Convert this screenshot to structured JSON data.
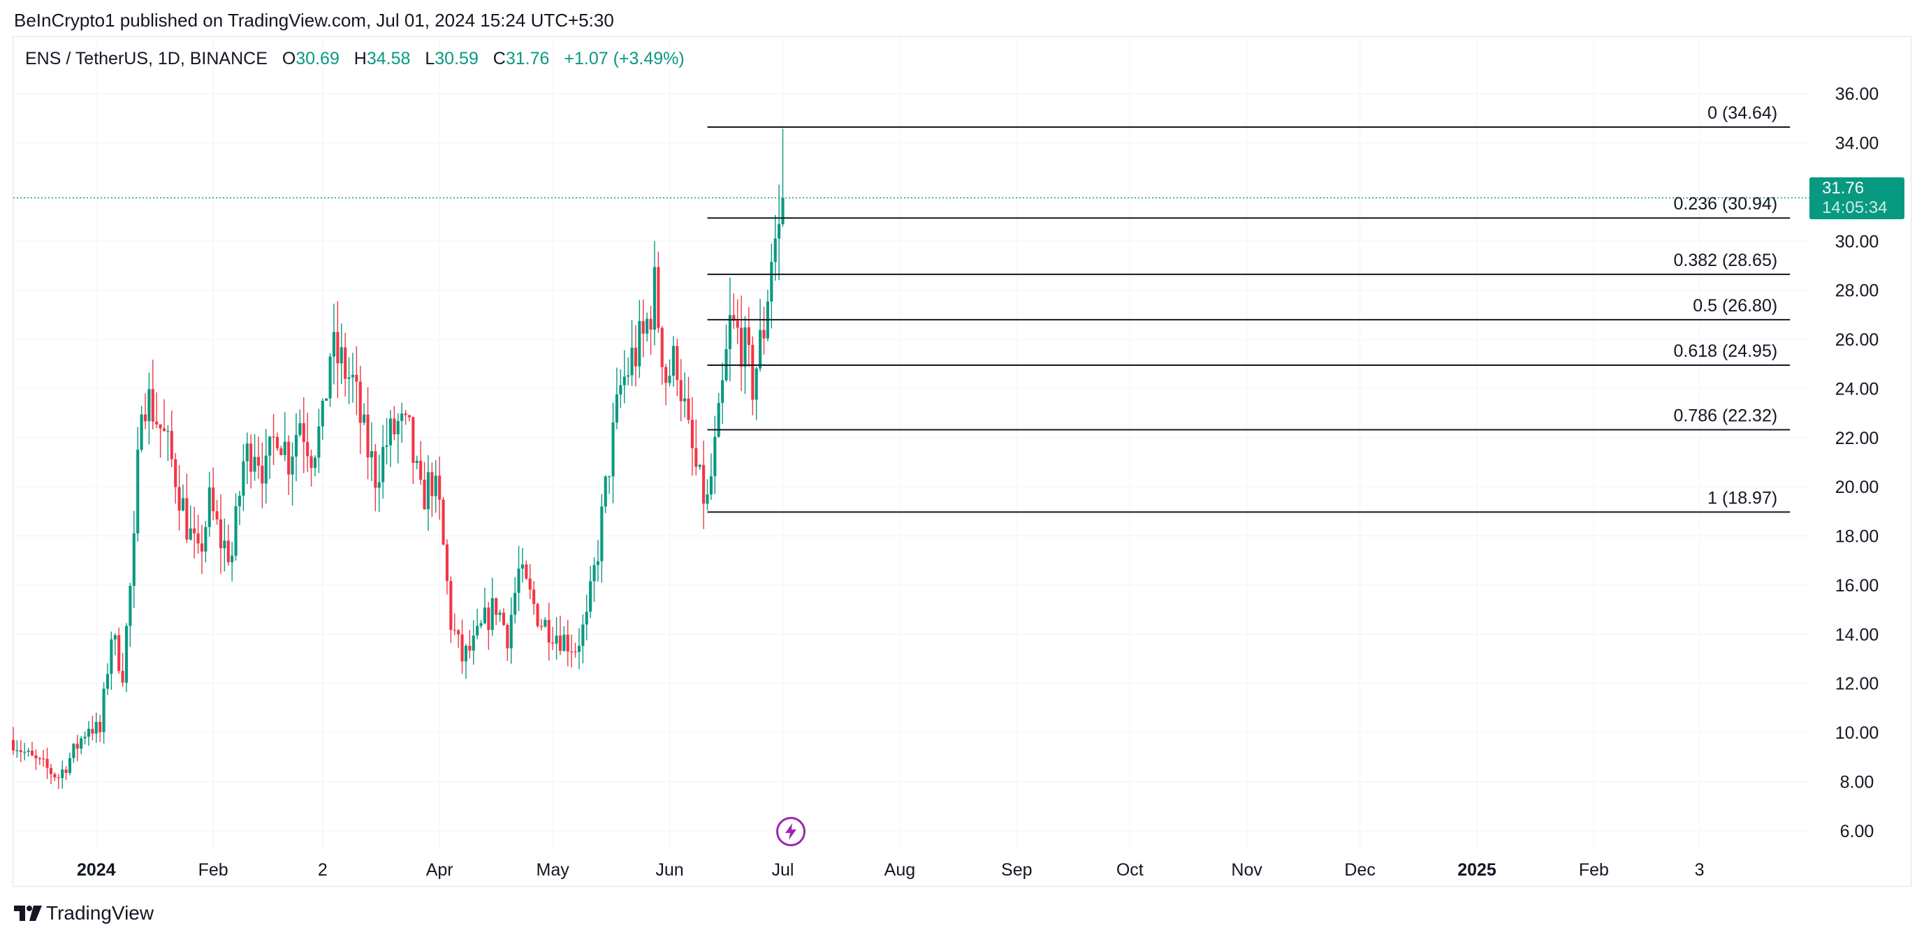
{
  "header": {
    "published": "BeInCrypto1 published on TradingView.com, Jul 01, 2024 15:24 UTC+5:30"
  },
  "legend": {
    "symbol": "ENS / TetherUS, 1D, BINANCE",
    "open_label": "O",
    "open": "30.69",
    "high_label": "H",
    "high": "34.58",
    "low_label": "L",
    "low": "30.59",
    "close_label": "C",
    "close": "31.76",
    "change": "+1.07 (+3.49%)"
  },
  "price_badge": {
    "price": "31.76",
    "countdown": "14:05:34"
  },
  "branding": {
    "name": "TradingView"
  },
  "icons": {
    "event": "lightning-icon",
    "logo": "tradingview-logo-icon"
  },
  "colors": {
    "up": "#089981",
    "down": "#f23645",
    "fib": "#131722",
    "price_line": "#089981",
    "event": "#9c27b0"
  },
  "chart_data": {
    "type": "candlestick",
    "symbol": "ENS / TetherUS",
    "timeframe": "1D",
    "y_range": [
      5,
      37
    ],
    "y_ticks": [
      "36.00",
      "34.00",
      "30.00",
      "28.00",
      "26.00",
      "24.00",
      "22.00",
      "20.00",
      "18.00",
      "16.00",
      "14.00",
      "12.00",
      "10.00",
      "8.00",
      "6.00"
    ],
    "x_range": [
      "2023-12-10",
      "2025-04-01"
    ],
    "x_ticks": [
      {
        "date": "2024-01-01",
        "label": "2024",
        "bold": true
      },
      {
        "date": "2024-02-01",
        "label": "Feb"
      },
      {
        "date": "2024-03-01",
        "label": "2"
      },
      {
        "date": "2024-04-01",
        "label": "Apr"
      },
      {
        "date": "2024-05-01",
        "label": "May"
      },
      {
        "date": "2024-06-01",
        "label": "Jun"
      },
      {
        "date": "2024-07-01",
        "label": "Jul"
      },
      {
        "date": "2024-08-01",
        "label": "Aug"
      },
      {
        "date": "2024-09-01",
        "label": "Sep"
      },
      {
        "date": "2024-10-01",
        "label": "Oct"
      },
      {
        "date": "2024-11-01",
        "label": "Nov"
      },
      {
        "date": "2024-12-01",
        "label": "Dec"
      },
      {
        "date": "2025-01-01",
        "label": "2025",
        "bold": true
      },
      {
        "date": "2025-02-01",
        "label": "Feb"
      },
      {
        "date": "2025-03-01",
        "label": "3"
      }
    ],
    "current_price": 31.76,
    "close_path": [
      [
        "2023-12-10",
        9.7
      ],
      [
        "2023-12-14",
        9.0
      ],
      [
        "2023-12-18",
        8.6
      ],
      [
        "2023-12-22",
        8.2
      ],
      [
        "2023-12-26",
        9.2
      ],
      [
        "2023-12-30",
        10.3
      ],
      [
        "2024-01-02",
        10.0
      ],
      [
        "2024-01-05",
        14.0
      ],
      [
        "2024-01-08",
        12.5
      ],
      [
        "2024-01-11",
        17.5
      ],
      [
        "2024-01-13",
        24.0
      ],
      [
        "2024-01-16",
        23.2
      ],
      [
        "2024-01-19",
        22.0
      ],
      [
        "2024-01-22",
        20.5
      ],
      [
        "2024-01-25",
        18.5
      ],
      [
        "2024-01-28",
        17.0
      ],
      [
        "2024-01-31",
        19.3
      ],
      [
        "2024-02-03",
        17.8
      ],
      [
        "2024-02-06",
        17.2
      ],
      [
        "2024-02-09",
        21.0
      ],
      [
        "2024-02-12",
        21.8
      ],
      [
        "2024-02-15",
        20.5
      ],
      [
        "2024-02-18",
        22.5
      ],
      [
        "2024-02-21",
        21.2
      ],
      [
        "2024-02-24",
        22.8
      ],
      [
        "2024-02-27",
        21.5
      ],
      [
        "2024-03-01",
        22.5
      ],
      [
        "2024-03-03",
        25.5
      ],
      [
        "2024-03-06",
        25.0
      ],
      [
        "2024-03-09",
        24.2
      ],
      [
        "2024-03-12",
        22.0
      ],
      [
        "2024-03-15",
        20.5
      ],
      [
        "2024-03-18",
        21.8
      ],
      [
        "2024-03-21",
        22.5
      ],
      [
        "2024-03-24",
        22.0
      ],
      [
        "2024-03-27",
        19.5
      ],
      [
        "2024-03-30",
        20.3
      ],
      [
        "2024-04-01",
        19.0
      ],
      [
        "2024-04-04",
        14.5
      ],
      [
        "2024-04-07",
        13.0
      ],
      [
        "2024-04-10",
        13.5
      ],
      [
        "2024-04-13",
        14.5
      ],
      [
        "2024-04-16",
        15.2
      ],
      [
        "2024-04-19",
        14.0
      ],
      [
        "2024-04-22",
        16.5
      ],
      [
        "2024-04-25",
        15.5
      ],
      [
        "2024-04-28",
        14.5
      ],
      [
        "2024-05-01",
        14.2
      ],
      [
        "2024-05-04",
        13.8
      ],
      [
        "2024-05-07",
        13.5
      ],
      [
        "2024-05-10",
        14.5
      ],
      [
        "2024-05-13",
        17.5
      ],
      [
        "2024-05-16",
        21.0
      ],
      [
        "2024-05-19",
        24.0
      ],
      [
        "2024-05-22",
        25.2
      ],
      [
        "2024-05-25",
        26.0
      ],
      [
        "2024-05-28",
        28.0
      ],
      [
        "2024-05-31",
        24.5
      ],
      [
        "2024-06-03",
        25.2
      ],
      [
        "2024-06-06",
        22.0
      ],
      [
        "2024-06-09",
        20.0
      ],
      [
        "2024-06-11",
        19.3
      ],
      [
        "2024-06-14",
        22.5
      ],
      [
        "2024-06-17",
        26.5
      ],
      [
        "2024-06-20",
        26.0
      ],
      [
        "2024-06-23",
        24.2
      ],
      [
        "2024-06-26",
        26.5
      ],
      [
        "2024-06-28",
        29.5
      ],
      [
        "2024-06-30",
        30.69
      ],
      [
        "2024-07-01",
        31.76
      ]
    ],
    "fibonacci": {
      "start_date": "2024-06-11",
      "end_date": "2025-03-25",
      "levels": [
        {
          "ratio": "0",
          "price": 34.64,
          "label": "0 (34.64)"
        },
        {
          "ratio": "0.236",
          "price": 30.94,
          "label": "0.236 (30.94)"
        },
        {
          "ratio": "0.382",
          "price": 28.65,
          "label": "0.382 (28.65)"
        },
        {
          "ratio": "0.5",
          "price": 26.8,
          "label": "0.5 (26.80)"
        },
        {
          "ratio": "0.618",
          "price": 24.95,
          "label": "0.618 (24.95)"
        },
        {
          "ratio": "0.786",
          "price": 22.32,
          "label": "0.786 (22.32)"
        },
        {
          "ratio": "1",
          "price": 18.97,
          "label": "1 (18.97)"
        }
      ]
    }
  }
}
